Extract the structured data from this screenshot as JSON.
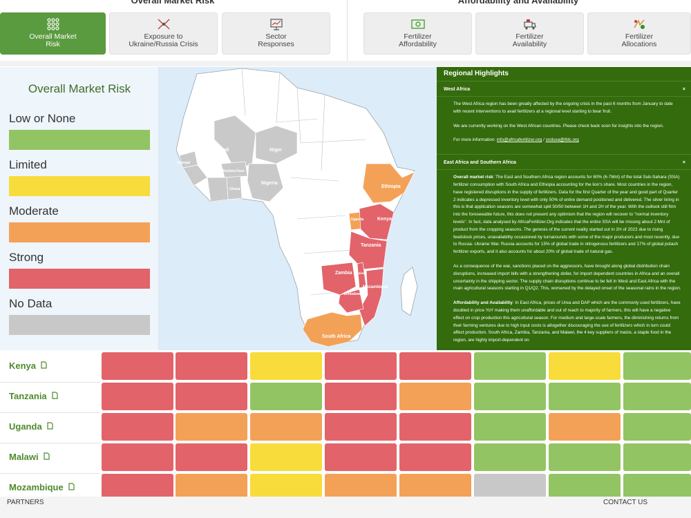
{
  "header": {
    "group_left": "Overall Market Risk",
    "group_right": "Affordability and Availability",
    "tabs": [
      {
        "label": "Overall Market\nRisk",
        "icon": "market-risk-icon",
        "active": true
      },
      {
        "label": "Exposure to\nUkraine/Russia Crisis",
        "icon": "crisis-arrows-icon",
        "active": false
      },
      {
        "label": "Sector\nResponses",
        "icon": "sector-chart-icon",
        "active": false
      },
      {
        "label": "Fertilizer\nAffordability",
        "icon": "money-icon",
        "active": false
      },
      {
        "label": "Fertilizer\nAvailability",
        "icon": "truck-icon",
        "active": false
      },
      {
        "label": "Fertilizer\nAllocations",
        "icon": "allocation-icon",
        "active": false
      }
    ]
  },
  "legend": {
    "title": "Overall Market Risk",
    "items": [
      {
        "label": "Low or None",
        "color": "#93c463"
      },
      {
        "label": "Limited",
        "color": "#f7dc3b"
      },
      {
        "label": "Moderate",
        "color": "#f4a158"
      },
      {
        "label": "Strong",
        "color": "#e2636a"
      },
      {
        "label": "No Data",
        "color": "#c8c8c8"
      }
    ]
  },
  "map": {
    "labels": [
      "Mali",
      "Niger",
      "Senegal",
      "Burkina Faso",
      "Ghana",
      "Nigeria",
      "Ethiopia",
      "Uganda",
      "Kenya",
      "Tanzania",
      "Malawi",
      "Zambia",
      "Mozambique",
      "Zimbabwe",
      "South Africa"
    ]
  },
  "highlights": {
    "title": "Regional Highlights",
    "sections": [
      {
        "heading": "West Africa",
        "close": "×",
        "paragraphs": [
          "The West Africa region has been greatly affected by the ongoing crisis in the past 6 months from January to date with recent interventions to avail fertilizers at a regional level starting to bear fruit.",
          "We are currently working on the West African countries. Please check back soon for insights into the region."
        ],
        "contact_prefix": "For more information: ",
        "email1": "info@africafertilizer.org",
        "contact_sep": " / ",
        "email2": "snduva@ifdc.org"
      },
      {
        "heading": "East Africa and Southern Africa",
        "close": "×",
        "p1_bold": "Overall market risk",
        "p1": ": The East and Southern Africa region accounts for 60% (6-7Mnt) of the total Sub-Sahara (SSA) fertilizer consumption with South Africa and Ethiopia accounting for the lion's share. Most countries in the region, have registered disruptions in the supply of fertilizers. Data for the first Quarter of the year and good part of Quarter 2 indicates a depressed inventory level with only 50% of entire demand positioned and delivered. The silver lining in this is that application seasons are somewhat split 50/50 between 1H and 2H of the year. With the outlook still firm into the foreseeable future, this does not present any optimism that the region will recover to \"normal inventory levels\". In fact, data analysed by AfricaFertilizer.Org indicates that the entire SSA will be missing about 2 Mnt of product from the cropping seasons. The genesis of the current reality started out in 2H of 2022 due to rising feedstock prices, unavailability occasioned by turnarounds with some of the major producers and most recently, due to Russia- Ukraine War. Russia accounts for 15% of global trade in nitrogenous fertilizers and 17% of global potash fertilizer exports, and it also accounts for about 20% of global trade of natural gas.",
        "p2": "As a consequence of the war, sanctions placed on the aggressors, have brought along global distribution chain disruptions, increased import bills with a strengthening dollar, for import dependent countries in Africa and an overall uncertainty in the shipping sector. The supply chain disruptions continue to be felt in West and East Africa with the main agricultural seasons starting in Q1/Q2. This, worsened by the delayed onset of the seasonal rains in the region.",
        "p3_bold": "Affordability and Availability",
        "p3": ": In East Africa, prices of Urea and DAP which are the commonly used fertilizers, have doubled in price YoY making them unaffordable and out of reach to majority of farmers, this will have a negative effect on crop production this agricultural season. For medium and large-scale farmers, the diminishing returns from their farming ventures due to high input costs is altogether discouraging the use of fertilizers which in turn could affect production. South Africa, Zambia, Tanzania, and Malawi, the 4 key suppliers of maize, a staple food in the region, are highly import-dependent on"
      }
    ]
  },
  "table": {
    "rows": [
      {
        "country": "Kenya",
        "cells": [
          "strong",
          "strong",
          "limited",
          "strong",
          "strong",
          "low",
          "limited",
          "low"
        ]
      },
      {
        "country": "Tanzania",
        "cells": [
          "strong",
          "strong",
          "low",
          "strong",
          "moderate",
          "low",
          "low",
          "low"
        ]
      },
      {
        "country": "Uganda",
        "cells": [
          "strong",
          "moderate",
          "moderate",
          "strong",
          "strong",
          "low",
          "moderate",
          "low"
        ]
      },
      {
        "country": "Malawi",
        "cells": [
          "strong",
          "strong",
          "limited",
          "strong",
          "strong",
          "low",
          "low",
          "low"
        ]
      },
      {
        "country": "Mozambique",
        "cells": [
          "strong",
          "moderate",
          "limited",
          "moderate",
          "moderate",
          "nodata",
          "low",
          "low"
        ]
      }
    ]
  },
  "footer": {
    "partners": "PARTNERS",
    "contact": "CONTACT US"
  }
}
